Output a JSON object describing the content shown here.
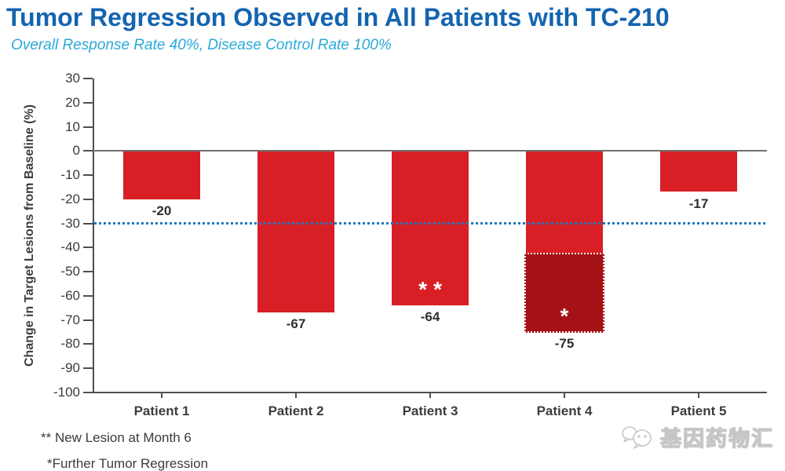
{
  "chart_data": {
    "type": "bar",
    "title": "Tumor Regression Observed in All Patients with TC-210",
    "subtitle": "Overall Response Rate 40%, Disease Control Rate 100%",
    "categories": [
      "Patient 1",
      "Patient 2",
      "Patient 3",
      "Patient 4",
      "Patient 5"
    ],
    "values": [
      -20,
      -67,
      -64,
      -75,
      -17
    ],
    "bar_labels": [
      "-20",
      "-67",
      "-64",
      "-75",
      "-17"
    ],
    "xlabel": "",
    "ylabel": "Change in Target Lesions from Baseline (%)",
    "ylim": [
      -100,
      30
    ],
    "yticks": [
      30,
      20,
      10,
      0,
      -10,
      -20,
      -30,
      -40,
      -50,
      -60,
      -70,
      -80,
      -90,
      -100
    ],
    "grid": false,
    "legend": "none",
    "baseline_value": 0,
    "reference_line": {
      "value": -30,
      "style": "dotted"
    },
    "annotations": [
      {
        "category": "Patient 3",
        "category_index": 2,
        "marker": "**",
        "meaning": "New Lesion at Month 6"
      },
      {
        "category": "Patient 4",
        "category_index": 3,
        "marker": "*",
        "meaning": "Further Tumor Regression",
        "highlight_segment": {
          "from": -42,
          "to": -75
        }
      }
    ]
  },
  "footnotes": [
    "** New Lesion at Month 6",
    "*Further Tumor Regression"
  ],
  "watermark": {
    "text": "基因药物汇",
    "icon": "wechat-icon"
  },
  "colors": {
    "title": "#1464b0",
    "subtitle": "#29a9d9",
    "bar": "#d81f26",
    "bar_dark": "#a41216",
    "reference_line": "#2077bd",
    "axis": "#4f4f4f",
    "zero_line": "#6f6f6f",
    "text": "#3c3c3c",
    "marker": "#ffffff",
    "watermark": "#c6c6c6"
  }
}
